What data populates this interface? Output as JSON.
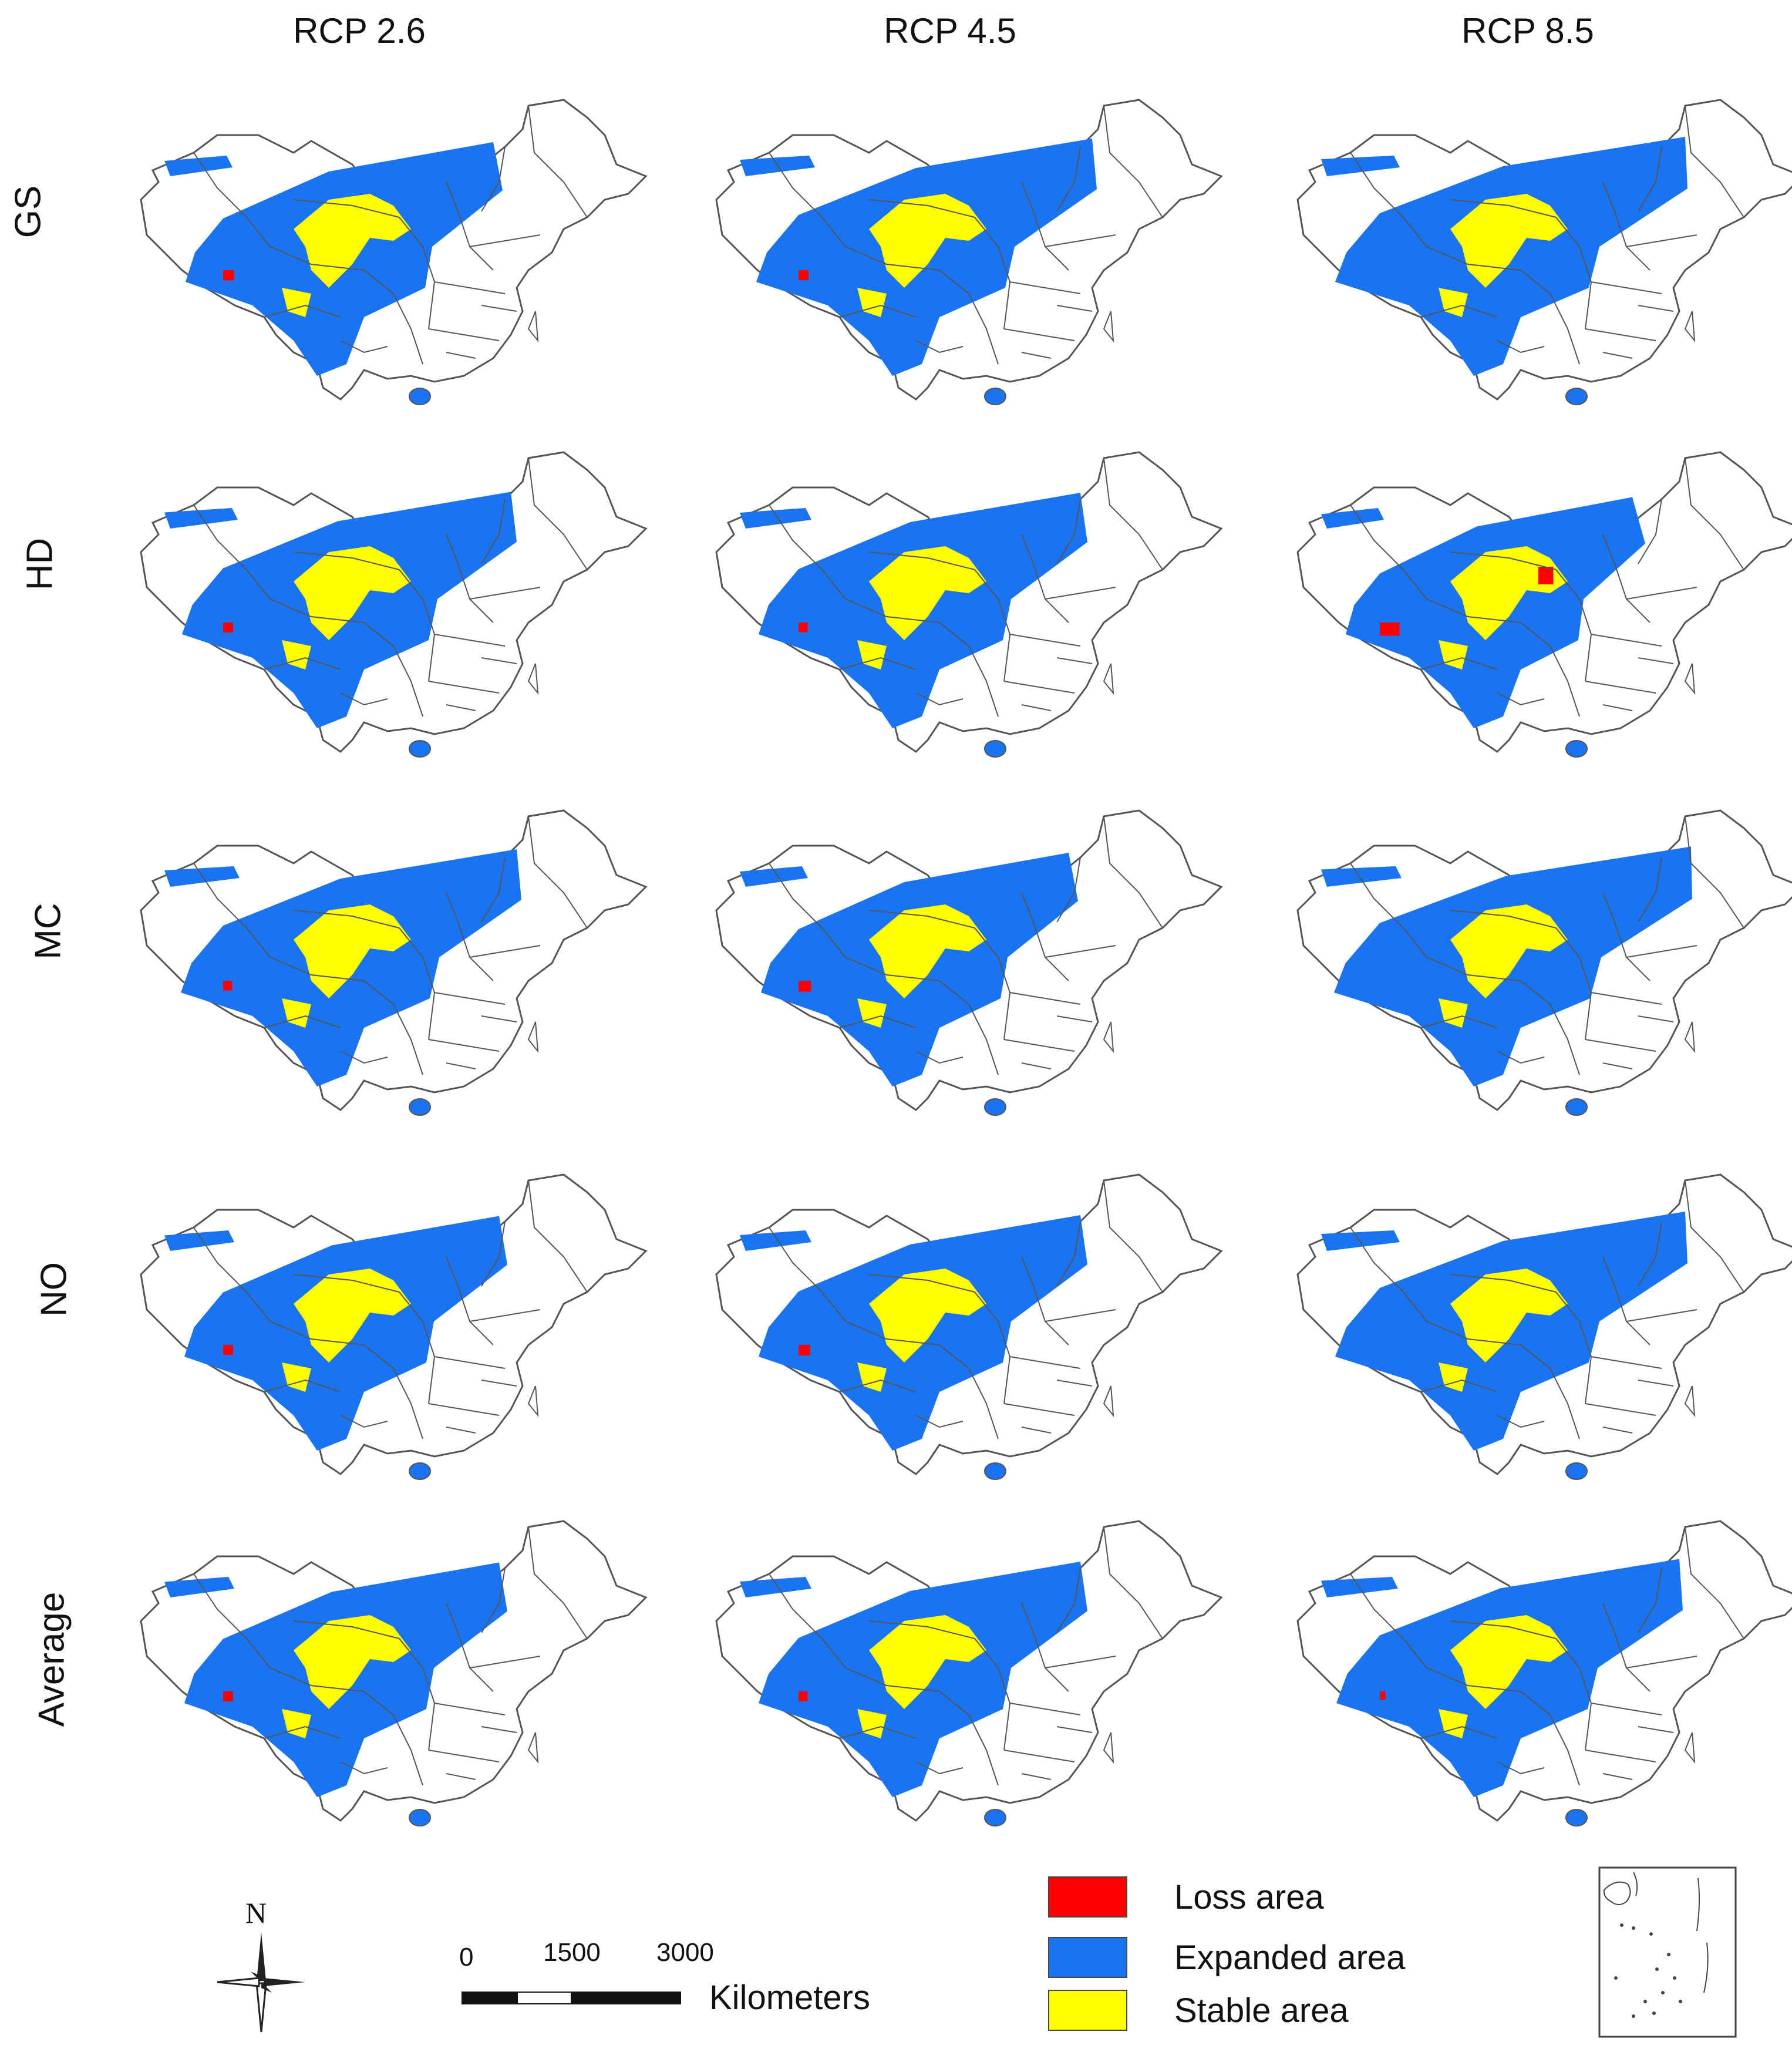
{
  "columns": [
    "RCP 2.6",
    "RCP 4.5",
    "RCP 8.5"
  ],
  "rows": [
    "GS",
    "HD",
    "MC",
    "NO",
    "Average"
  ],
  "colors": {
    "loss": "#ff0000",
    "expanded": "#1a73f0",
    "stable": "#ffff00",
    "boundary": "#555555"
  },
  "legend": {
    "items": [
      {
        "key": "loss",
        "label": "Loss area",
        "color": "#ff0000"
      },
      {
        "key": "expanded",
        "label": "Expanded area",
        "color": "#1a73f0"
      },
      {
        "key": "stable",
        "label": "Stable area",
        "color": "#ffff00"
      }
    ]
  },
  "scale_bar": {
    "ticks": [
      "0",
      "1500",
      "3000"
    ],
    "unit": "Kilometers"
  },
  "north_arrow": {
    "label": "N",
    "icon": "compass-rose-icon"
  },
  "inset_icon": "south-china-sea-inset-icon",
  "maps": [
    {
      "row": "GS",
      "column": "RCP 2.6",
      "expansion_level": 0.6,
      "loss_level": 0.35
    },
    {
      "row": "GS",
      "column": "RCP 4.5",
      "expansion_level": 0.8,
      "loss_level": 0.3
    },
    {
      "row": "GS",
      "column": "RCP 8.5",
      "expansion_level": 0.9,
      "loss_level": 0.0
    },
    {
      "row": "HD",
      "column": "RCP 2.6",
      "expansion_level": 0.75,
      "loss_level": 0.3
    },
    {
      "row": "HD",
      "column": "RCP 4.5",
      "expansion_level": 0.7,
      "loss_level": 0.25
    },
    {
      "row": "HD",
      "column": "RCP 8.5",
      "expansion_level": 0.45,
      "loss_level": 0.85
    },
    {
      "row": "MC",
      "column": "RCP 2.6",
      "expansion_level": 0.8,
      "loss_level": 0.25
    },
    {
      "row": "MC",
      "column": "RCP 4.5",
      "expansion_level": 0.6,
      "loss_level": 0.45
    },
    {
      "row": "MC",
      "column": "RCP 8.5",
      "expansion_level": 0.95,
      "loss_level": 0.0
    },
    {
      "row": "NO",
      "column": "RCP 2.6",
      "expansion_level": 0.65,
      "loss_level": 0.3
    },
    {
      "row": "NO",
      "column": "RCP 4.5",
      "expansion_level": 0.7,
      "loss_level": 0.4
    },
    {
      "row": "NO",
      "column": "RCP 8.5",
      "expansion_level": 0.9,
      "loss_level": 0.0
    },
    {
      "row": "Average",
      "column": "RCP 2.6",
      "expansion_level": 0.65,
      "loss_level": 0.3
    },
    {
      "row": "Average",
      "column": "RCP 4.5",
      "expansion_level": 0.7,
      "loss_level": 0.25
    },
    {
      "row": "Average",
      "column": "RCP 8.5",
      "expansion_level": 0.85,
      "loss_level": 0.05
    }
  ]
}
